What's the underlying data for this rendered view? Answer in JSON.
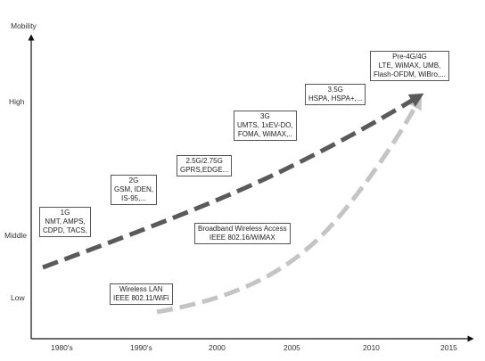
{
  "axes": {
    "y_label": "Mobility",
    "y_ticks": [
      "High",
      "Middle",
      "Low"
    ],
    "x_ticks": [
      "1980's",
      "1990's",
      "2000",
      "2005",
      "2010",
      "2015"
    ]
  },
  "boxes": [
    {
      "id": "g1",
      "lines": [
        "1G",
        "NMT, AMPS,",
        "CDPD, TACS,"
      ]
    },
    {
      "id": "g2",
      "lines": [
        "2G",
        "GSM, IDEN,",
        "IS-95,..."
      ]
    },
    {
      "id": "g25",
      "lines": [
        "2.5G/2.75G",
        "GPRS,EDGE..."
      ]
    },
    {
      "id": "g3",
      "lines": [
        "3G",
        "UMTS, 1xEV-DO,",
        "FOMA, WiMAX,.."
      ]
    },
    {
      "id": "g35",
      "lines": [
        "3.5G",
        "HSPA, HSPA+,..."
      ]
    },
    {
      "id": "g4",
      "lines": [
        "Pre-4G/4G",
        "LTE, WiMAX, UMB,",
        "Flash-OFDM, WiBro,..."
      ]
    },
    {
      "id": "bwa",
      "lines": [
        "Broadband Wireless Access",
        "IEEE 802.16/WiMAX"
      ]
    },
    {
      "id": "wlan",
      "lines": [
        "Wireless LAN",
        "IEEE 802.11/WiFi"
      ]
    }
  ],
  "colors": {
    "cellular_arrow": "#5a5a5a",
    "wireless_arrow": "#c4c4c4",
    "axis": "#111111"
  }
}
